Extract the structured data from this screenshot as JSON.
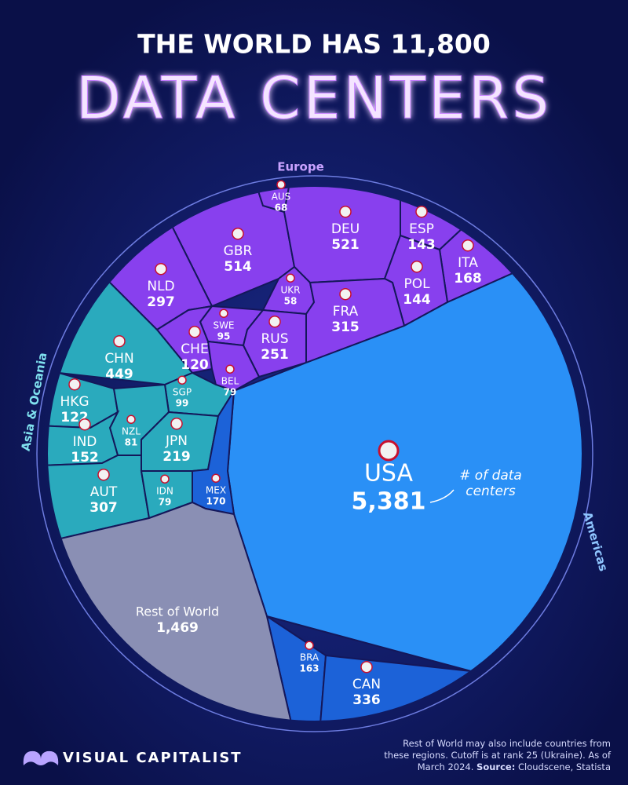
{
  "chart_data": {
    "type": "voronoi-treemap",
    "title": "THE WORLD HAS 11,800",
    "subtitle": "DATA CENTERS",
    "annotation": "# of data centers",
    "series": [
      {
        "name": "Europe",
        "color": "#8840ee",
        "categories": [
          "GBR",
          "DEU",
          "AUS",
          "ESP",
          "ITA",
          "NLD",
          "UKR",
          "POL",
          "FRA",
          "SWE",
          "CHE",
          "RUS",
          "BEL"
        ],
        "values": [
          514,
          521,
          68,
          143,
          168,
          297,
          58,
          144,
          315,
          95,
          120,
          251,
          79
        ]
      },
      {
        "name": "Asia & Oceania",
        "color": "#2aaabd",
        "categories": [
          "CHN",
          "HKG",
          "SGP",
          "NZL",
          "IND",
          "JPN",
          "AUT",
          "IDN"
        ],
        "values": [
          449,
          122,
          99,
          81,
          152,
          219,
          307,
          79
        ]
      },
      {
        "name": "Americas",
        "color": "#2184f2",
        "categories": [
          "USA",
          "MEX",
          "BRA",
          "CAN"
        ],
        "values": [
          5381,
          170,
          163,
          336
        ],
        "value_labels": [
          "5,381",
          "170",
          "163",
          "336"
        ]
      },
      {
        "name": "Rest of World",
        "color": "#8a8fb4",
        "values": [
          1469
        ],
        "value_labels": [
          "1,469"
        ]
      }
    ],
    "note": "Rest of World may also include countries from these regions. Cutoff is at rank 25 (Ukraine). As of March 2024.",
    "source_label": "Source:",
    "source": "Cloudscene, Statista",
    "brand": "VISUAL CAPITALIST"
  }
}
